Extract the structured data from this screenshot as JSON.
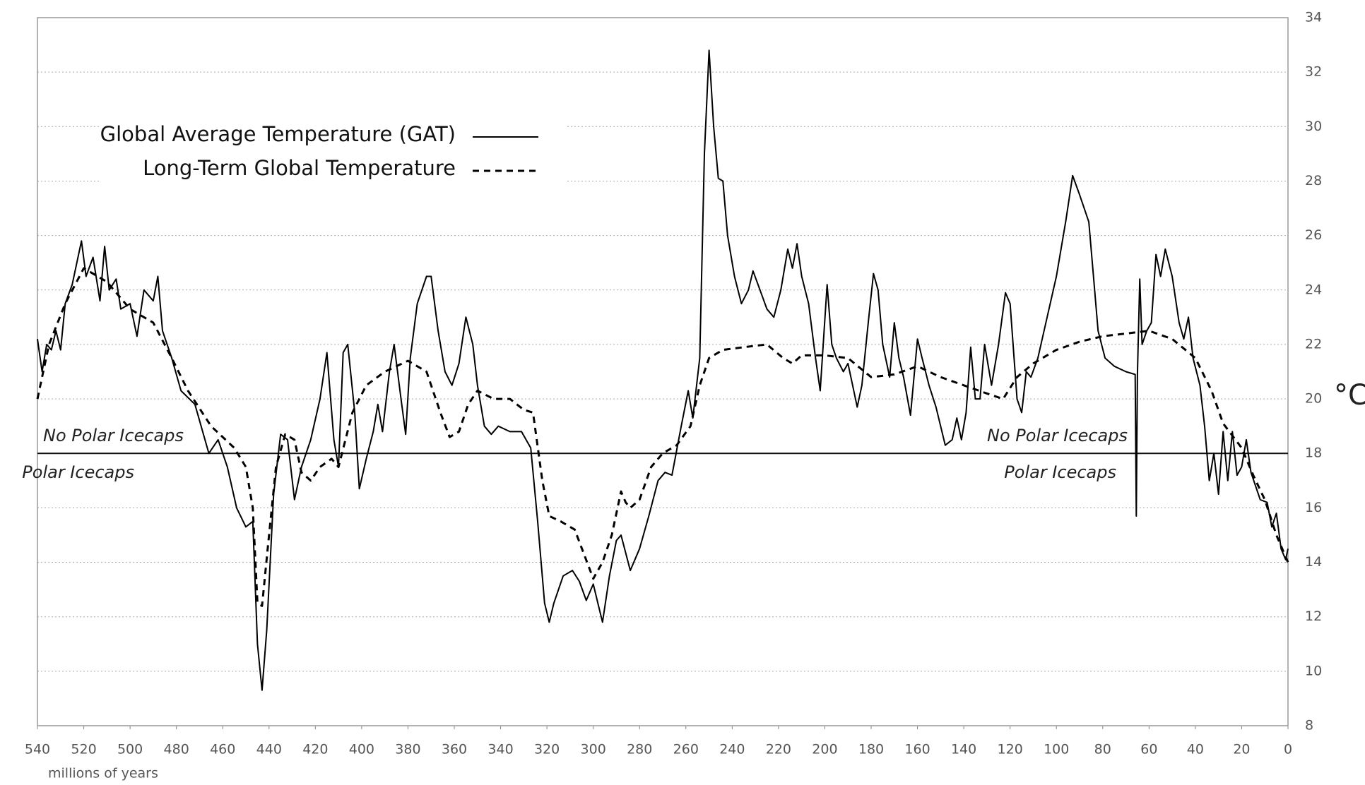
{
  "chart_data": {
    "type": "line",
    "x_label": "millions of years",
    "y_label": "°C",
    "xlim": [
      540,
      0
    ],
    "xticks": [
      540,
      520,
      500,
      480,
      460,
      440,
      420,
      400,
      380,
      360,
      340,
      320,
      300,
      280,
      260,
      240,
      220,
      200,
      180,
      160,
      140,
      120,
      100,
      80,
      60,
      40,
      20,
      0
    ],
    "ylim": [
      8,
      34
    ],
    "yticks": [
      8,
      10,
      12,
      14,
      16,
      18,
      20,
      22,
      24,
      26,
      28,
      30,
      32,
      34
    ],
    "grid": true,
    "y_axis_side": "right",
    "legend_position": "upper left",
    "threshold": 18,
    "annotations": [
      "No Polar Icecaps",
      "Polar Icecaps",
      "No Polar Icecaps",
      "Polar Icecaps"
    ],
    "series": [
      {
        "name": "Global Average Temperature  (GAT)",
        "color": "#000000",
        "style": "solid",
        "x": [
          540,
          538,
          536,
          534,
          532,
          530,
          528,
          525,
          521,
          519,
          516,
          513,
          511,
          509,
          506,
          504,
          500,
          497,
          494,
          490,
          488,
          486,
          482,
          478,
          472,
          466,
          462,
          458,
          454,
          450,
          447,
          445,
          443,
          441,
          438,
          435,
          432,
          429,
          426,
          422,
          418,
          415,
          412,
          410,
          408,
          406,
          403,
          401,
          398,
          395,
          393,
          391,
          388,
          386,
          383,
          381,
          379,
          376,
          372,
          370,
          367,
          364,
          361,
          358,
          355,
          352,
          350,
          347,
          344,
          341,
          336,
          331,
          327,
          324,
          321,
          319,
          317,
          313,
          309,
          306,
          303,
          300,
          298,
          296,
          293,
          290,
          288,
          284,
          280,
          276,
          272,
          269,
          266,
          262,
          259,
          257,
          254,
          252,
          250,
          248,
          246,
          244,
          242,
          239,
          236,
          233,
          231,
          228,
          225,
          222,
          219,
          216,
          214,
          212,
          210,
          207,
          204,
          202,
          199,
          197,
          195,
          192,
          190,
          188,
          186,
          184,
          181,
          179,
          177,
          175,
          172,
          170,
          168,
          166,
          163,
          160,
          158,
          155,
          152,
          148,
          145,
          143,
          141,
          139,
          137,
          135,
          133,
          131,
          128,
          125,
          122,
          120,
          117,
          115,
          113,
          111,
          108,
          104,
          100,
          96,
          93,
          90,
          86,
          84,
          82,
          79,
          75,
          70,
          66,
          65.5,
          65,
          64,
          63,
          61,
          59,
          57,
          55,
          53,
          50,
          47,
          45,
          43,
          41,
          38,
          36,
          34,
          32,
          30,
          28,
          26,
          24,
          22,
          20,
          18,
          16,
          12,
          9,
          7,
          5,
          3,
          1,
          0
        ],
        "values": [
          22.2,
          21,
          22,
          21.8,
          22.5,
          21.8,
          23.5,
          24.2,
          25.8,
          24.5,
          25.2,
          23.6,
          25.6,
          24,
          24.4,
          23.3,
          23.5,
          22.3,
          24,
          23.6,
          24.5,
          22.5,
          21.5,
          20.3,
          19.8,
          18,
          18.5,
          17.5,
          16,
          15.3,
          15.5,
          11,
          9.3,
          11.5,
          16.5,
          18.7,
          18.5,
          16.3,
          17.5,
          18.5,
          20,
          21.7,
          18.5,
          17.5,
          21.7,
          22,
          19.5,
          16.7,
          17.8,
          18.8,
          19.8,
          18.8,
          21,
          22,
          20,
          18.7,
          21.5,
          23.5,
          24.5,
          24.5,
          22.5,
          21,
          20.5,
          21.3,
          23,
          22,
          20.5,
          19,
          18.7,
          19,
          18.8,
          18.8,
          18.2,
          15.5,
          12.5,
          11.8,
          12.5,
          13.5,
          13.7,
          13.3,
          12.6,
          13.2,
          12.5,
          11.8,
          13.5,
          14.8,
          15,
          13.7,
          14.5,
          15.7,
          17,
          17.3,
          17.2,
          19,
          20.3,
          19.3,
          21.5,
          29,
          32.8,
          30,
          28.1,
          28,
          26,
          24.5,
          23.5,
          24,
          24.7,
          24,
          23.3,
          23,
          24,
          25.5,
          24.8,
          25.7,
          24.5,
          23.5,
          21.5,
          20.3,
          24.2,
          22,
          21.5,
          21,
          21.3,
          20.5,
          19.7,
          20.5,
          23,
          24.6,
          24,
          22,
          20.8,
          22.8,
          21.5,
          20.8,
          19.4,
          22.2,
          21.5,
          20.5,
          19.7,
          18.3,
          18.5,
          19.3,
          18.5,
          19.5,
          21.9,
          20,
          20,
          22,
          20.5,
          22,
          23.9,
          23.5,
          20,
          19.5,
          21,
          20.8,
          21.5,
          23,
          24.5,
          26.5,
          28.2,
          27.5,
          26.5,
          24.5,
          22.5,
          21.5,
          21.2,
          21,
          20.9,
          15.7,
          20.9,
          24.4,
          22,
          22.5,
          22.8,
          25.3,
          24.5,
          25.5,
          24.5,
          22.8,
          22.2,
          23,
          21.5,
          20.5,
          19,
          17,
          18,
          16.5,
          18.8,
          17,
          18.8,
          17.2,
          17.5,
          18.5,
          17.3,
          16.3,
          16.2,
          15.3,
          15.8,
          14.5,
          14.1,
          14.5
        ]
      },
      {
        "name": "Long-Term Global Temperature",
        "color": "#000000",
        "style": "dashed",
        "x": [
          540,
          535,
          528,
          520,
          510,
          500,
          490,
          482,
          475,
          465,
          455,
          450,
          447,
          445,
          443,
          440,
          437,
          433,
          429,
          426,
          422,
          418,
          413,
          410,
          404,
          398,
          390,
          380,
          372,
          366,
          362,
          358,
          354,
          350,
          343,
          336,
          330,
          326,
          322,
          319,
          314,
          308,
          304,
          300,
          296,
          292,
          288,
          286,
          284,
          280,
          275,
          270,
          264,
          258,
          254,
          250,
          244,
          235,
          225,
          218,
          214,
          210,
          200,
          190,
          180,
          170,
          160,
          150,
          140,
          130,
          123,
          117,
          110,
          100,
          90,
          80,
          70,
          60,
          50,
          40,
          33,
          28,
          20,
          15,
          10,
          5,
          1,
          0
        ],
        "values": [
          20,
          22,
          23.5,
          24.8,
          24.3,
          23.3,
          22.8,
          21.5,
          20.3,
          19,
          18.2,
          17.5,
          16,
          12.5,
          12.4,
          15,
          17.5,
          18.7,
          18.5,
          17.3,
          17,
          17.5,
          17.8,
          17.5,
          19.5,
          20.5,
          21,
          21.4,
          21,
          19.5,
          18.6,
          18.8,
          19.8,
          20.3,
          20,
          20,
          19.6,
          19.5,
          17,
          15.7,
          15.5,
          15.2,
          14.3,
          13.4,
          14,
          15,
          16.6,
          16.2,
          16,
          16.3,
          17.5,
          18,
          18.3,
          19,
          20.5,
          21.5,
          21.8,
          21.9,
          22,
          21.5,
          21.3,
          21.6,
          21.6,
          21.5,
          20.8,
          20.9,
          21.2,
          20.8,
          20.5,
          20.2,
          20,
          20.8,
          21.3,
          21.8,
          22.1,
          22.3,
          22.4,
          22.5,
          22.2,
          21.5,
          20.3,
          19.1,
          18.2,
          17.2,
          16.3,
          15,
          14.2,
          14
        ]
      }
    ]
  }
}
